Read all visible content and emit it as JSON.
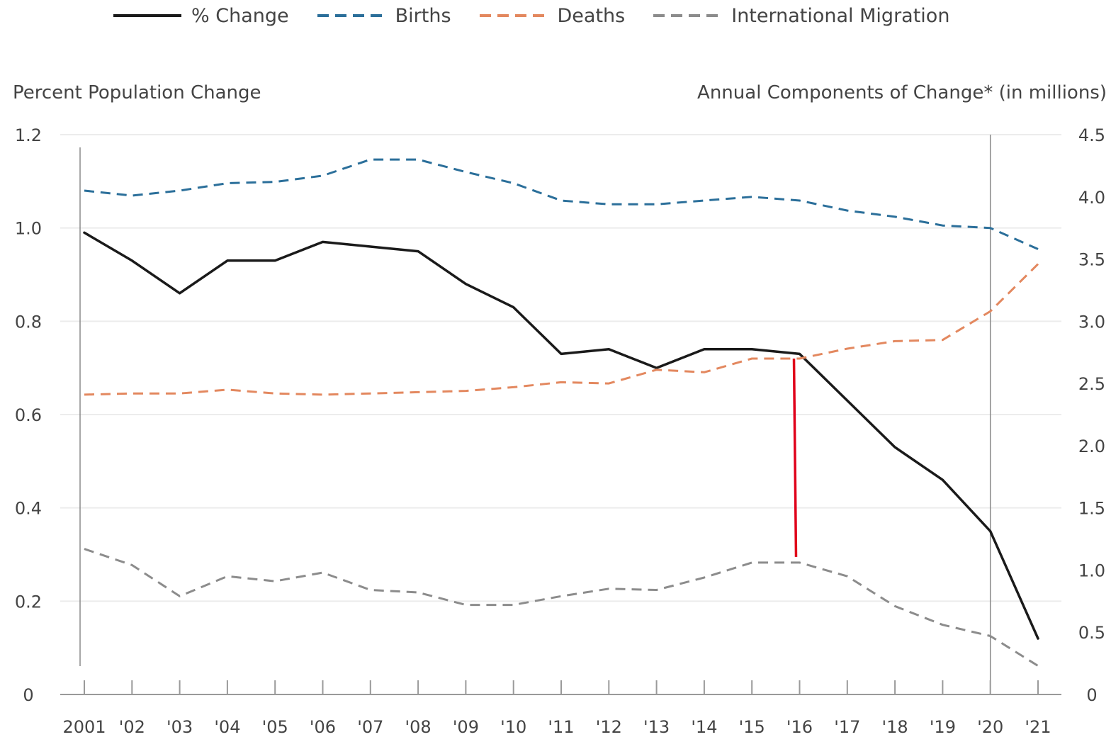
{
  "legend": [
    {
      "label": "% Change",
      "color": "#1a1a1a",
      "style": "solid"
    },
    {
      "label": "Births",
      "color": "#2b6f9a",
      "style": "dashed"
    },
    {
      "label": "Deaths",
      "color": "#e3885f",
      "style": "dashed"
    },
    {
      "label": "International Migration",
      "color": "#8c8c8c",
      "style": "dashed"
    }
  ],
  "chart_data": {
    "type": "line",
    "left_axis_title": "Percent Population Change",
    "right_axis_title": "Annual Components of Change* (in millions)",
    "categories": [
      "2001",
      "'02",
      "'03",
      "'04",
      "'05",
      "'06",
      "'07",
      "'08",
      "'09",
      "'10",
      "'11",
      "'12",
      "'13",
      "'14",
      "'15",
      "'16",
      "'17",
      "'18",
      "'19",
      "'20",
      "'21"
    ],
    "y_left": {
      "range": [
        0,
        1.2
      ],
      "ticks": [
        "0",
        "0.2",
        "0.4",
        "0.6",
        "0.8",
        "1.0",
        "1.2"
      ]
    },
    "y_right": {
      "range": [
        0,
        4.5
      ],
      "ticks": [
        "0",
        "0.5",
        "1.0",
        "1.5",
        "2.0",
        "2.5",
        "3.0",
        "3.5",
        "4.0",
        "4.5"
      ]
    },
    "grid": true,
    "legend_position": "top",
    "series": [
      {
        "name": "% Change",
        "axis": "left",
        "color": "#1a1a1a",
        "style": "solid",
        "values": [
          0.99,
          0.93,
          0.86,
          0.93,
          0.93,
          0.97,
          0.96,
          0.95,
          0.88,
          0.83,
          0.73,
          0.74,
          0.7,
          0.74,
          0.74,
          0.73,
          0.63,
          0.53,
          0.46,
          0.35,
          0.12
        ]
      },
      {
        "name": "Births",
        "axis": "right",
        "color": "#2b6f9a",
        "style": "dashed",
        "values": [
          4.05,
          4.01,
          4.05,
          4.11,
          4.12,
          4.17,
          4.3,
          4.3,
          4.2,
          4.11,
          3.97,
          3.94,
          3.94,
          3.97,
          4.0,
          3.97,
          3.89,
          3.84,
          3.77,
          3.75,
          3.58
        ]
      },
      {
        "name": "Deaths",
        "axis": "right",
        "color": "#e3885f",
        "style": "dashed",
        "values": [
          2.41,
          2.42,
          2.42,
          2.45,
          2.42,
          2.41,
          2.42,
          2.43,
          2.44,
          2.47,
          2.51,
          2.5,
          2.61,
          2.59,
          2.7,
          2.7,
          2.78,
          2.84,
          2.85,
          3.08,
          3.46
        ]
      },
      {
        "name": "International Migration",
        "axis": "right",
        "color": "#8c8c8c",
        "style": "dashed",
        "values": [
          1.17,
          1.04,
          0.79,
          0.95,
          0.91,
          0.98,
          0.84,
          0.82,
          0.72,
          0.72,
          0.79,
          0.85,
          0.84,
          0.94,
          1.06,
          1.06,
          0.95,
          0.71,
          0.56,
          0.47,
          0.23
        ]
      }
    ],
    "annotations": {
      "vertical_rules_at": [
        "2001",
        "'20"
      ],
      "red_marker": {
        "category": "'16",
        "from_series": "Deaths",
        "to_series": "International Migration",
        "color": "#e0001a"
      }
    }
  }
}
